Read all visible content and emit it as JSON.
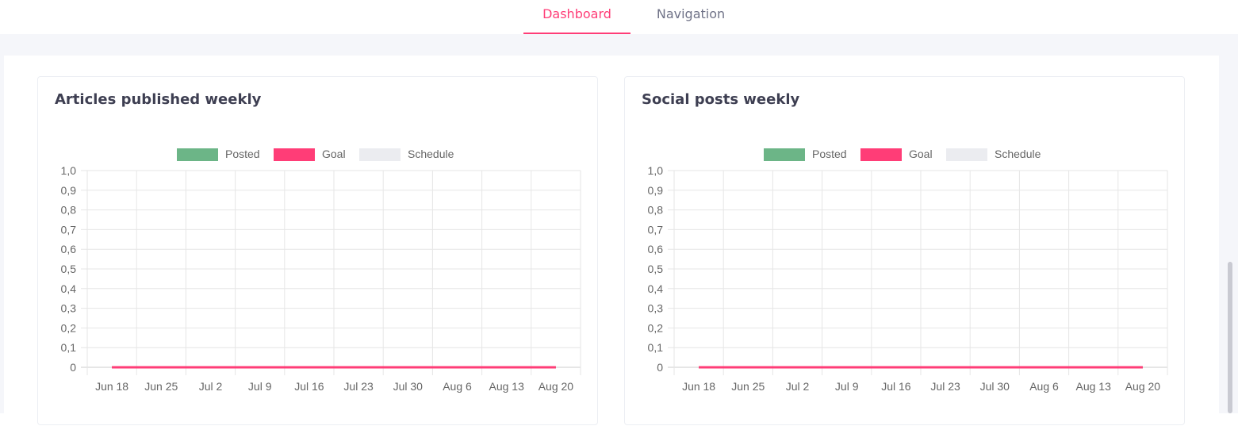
{
  "tabs": [
    {
      "label": "Dashboard",
      "active": true
    },
    {
      "label": "Navigation",
      "active": false
    }
  ],
  "colors": {
    "accent": "#ff3d77",
    "posted": "#6cb587",
    "goal": "#ff3d77",
    "schedule": "#ebecf0"
  },
  "chart_data": [
    {
      "type": "line",
      "title": "Articles published weekly",
      "categories": [
        "Jun 18",
        "Jun 25",
        "Jul 2",
        "Jul 9",
        "Jul 16",
        "Jul 23",
        "Jul 30",
        "Aug 6",
        "Aug 13",
        "Aug 20"
      ],
      "ylim": [
        0,
        1.0
      ],
      "yticks": [
        "0",
        "0,1",
        "0,2",
        "0,3",
        "0,4",
        "0,5",
        "0,6",
        "0,7",
        "0,8",
        "0,9",
        "1,0"
      ],
      "grid": true,
      "legend": "top",
      "series": [
        {
          "name": "Posted",
          "color": "#6cb587",
          "values": [
            0,
            0,
            0,
            0,
            0,
            0,
            0,
            0,
            0,
            0
          ]
        },
        {
          "name": "Goal",
          "color": "#ff3d77",
          "values": [
            0,
            0,
            0,
            0,
            0,
            0,
            0,
            0,
            0,
            0
          ]
        },
        {
          "name": "Schedule",
          "color": "#ebecf0",
          "values": [
            0,
            0,
            0,
            0,
            0,
            0,
            0,
            0,
            0,
            0
          ]
        }
      ]
    },
    {
      "type": "line",
      "title": "Social posts weekly",
      "categories": [
        "Jun 18",
        "Jun 25",
        "Jul 2",
        "Jul 9",
        "Jul 16",
        "Jul 23",
        "Jul 30",
        "Aug 6",
        "Aug 13",
        "Aug 20"
      ],
      "ylim": [
        0,
        1.0
      ],
      "yticks": [
        "0",
        "0,1",
        "0,2",
        "0,3",
        "0,4",
        "0,5",
        "0,6",
        "0,7",
        "0,8",
        "0,9",
        "1,0"
      ],
      "grid": true,
      "legend": "top",
      "series": [
        {
          "name": "Posted",
          "color": "#6cb587",
          "values": [
            0,
            0,
            0,
            0,
            0,
            0,
            0,
            0,
            0,
            0
          ]
        },
        {
          "name": "Goal",
          "color": "#ff3d77",
          "values": [
            0,
            0,
            0,
            0,
            0,
            0,
            0,
            0,
            0,
            0
          ]
        },
        {
          "name": "Schedule",
          "color": "#ebecf0",
          "values": [
            0,
            0,
            0,
            0,
            0,
            0,
            0,
            0,
            0,
            0
          ]
        }
      ]
    }
  ]
}
